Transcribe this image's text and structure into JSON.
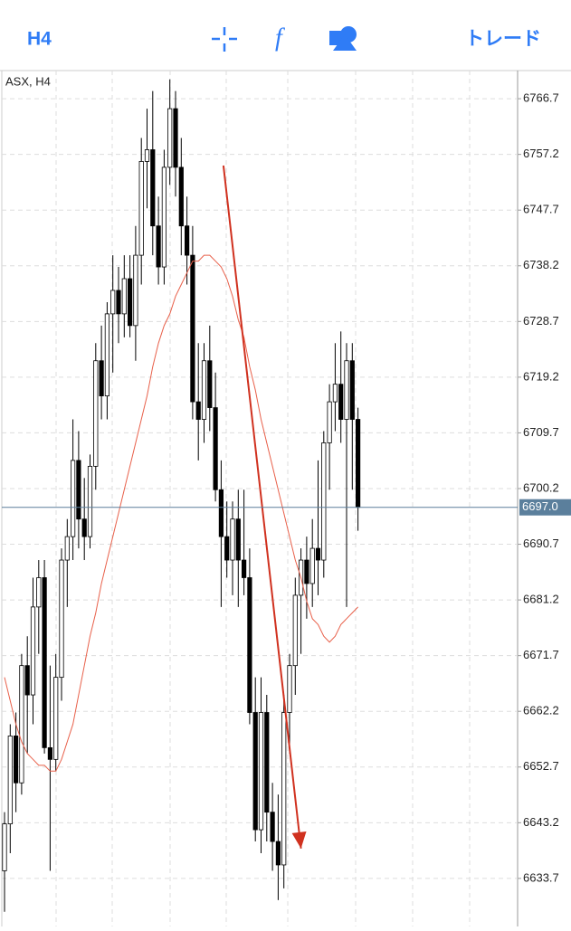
{
  "toolbar": {
    "timeframe": "H4",
    "function_icon": "f",
    "trade": "トレード"
  },
  "chart_data": {
    "type": "candlestick",
    "title": "ASX, H4",
    "open": [
      6635,
      6643,
      6658,
      6650,
      6670,
      6665,
      6680,
      6685,
      6656,
      6654,
      6668,
      6688,
      6692,
      6705,
      6695,
      6692,
      6704,
      6722,
      6716,
      6730,
      6734,
      6730,
      6736,
      6728,
      6740,
      6756,
      6758,
      6745,
      6738,
      6755,
      6765,
      6755,
      6745,
      6740,
      6715,
      6712,
      6722,
      6714,
      6700,
      6692,
      6688,
      6695,
      6688,
      6685,
      6662,
      6642,
      6662,
      6645,
      6640,
      6636,
      6662,
      6670,
      6682,
      6688,
      6684,
      6690,
      6688,
      6708,
      6715,
      6718,
      6712,
      6722,
      6712
    ],
    "high": [
      6645,
      6660,
      6662,
      6672,
      6675,
      6685,
      6688,
      6688,
      6670,
      6672,
      6690,
      6695,
      6712,
      6710,
      6702,
      6706,
      6725,
      6728,
      6732,
      6740,
      6738,
      6740,
      6740,
      6745,
      6760,
      6765,
      6768,
      6750,
      6758,
      6770,
      6768,
      6760,
      6750,
      6745,
      6725,
      6725,
      6728,
      6720,
      6705,
      6698,
      6698,
      6700,
      6700,
      6690,
      6668,
      6668,
      6665,
      6650,
      6648,
      6665,
      6672,
      6685,
      6690,
      6692,
      6695,
      6705,
      6710,
      6718,
      6725,
      6727,
      6725,
      6725,
      6714
    ],
    "low": [
      6628,
      6638,
      6645,
      6648,
      6655,
      6660,
      6672,
      6655,
      6635,
      6652,
      6664,
      6680,
      6688,
      6690,
      6688,
      6690,
      6700,
      6712,
      6712,
      6720,
      6725,
      6726,
      6726,
      6722,
      6735,
      6748,
      6740,
      6735,
      6735,
      6752,
      6750,
      6740,
      6735,
      6712,
      6705,
      6708,
      6710,
      6698,
      6680,
      6685,
      6682,
      6680,
      6682,
      6660,
      6640,
      6638,
      6640,
      6635,
      6630,
      6632,
      6655,
      6665,
      6672,
      6678,
      6680,
      6682,
      6685,
      6700,
      6710,
      6708,
      6680,
      6700,
      6693
    ],
    "close": [
      6643,
      6658,
      6650,
      6670,
      6665,
      6680,
      6685,
      6656,
      6654,
      6668,
      6688,
      6692,
      6705,
      6695,
      6692,
      6704,
      6722,
      6716,
      6730,
      6734,
      6730,
      6736,
      6728,
      6740,
      6756,
      6758,
      6745,
      6738,
      6755,
      6765,
      6755,
      6745,
      6740,
      6715,
      6712,
      6722,
      6714,
      6700,
      6692,
      6688,
      6695,
      6688,
      6685,
      6662,
      6642,
      6662,
      6645,
      6640,
      6636,
      6662,
      6670,
      6682,
      6688,
      6684,
      6690,
      6688,
      6708,
      6715,
      6718,
      6712,
      6722,
      6712,
      6697
    ],
    "series": [
      {
        "name": "MA",
        "color": "#e8604a",
        "values": [
          6668,
          6664,
          6660,
          6657,
          6655,
          6654,
          6653,
          6653,
          6652,
          6652,
          6654,
          6657,
          6660,
          6665,
          6670,
          6675,
          6679,
          6684,
          6688,
          6692,
          6696,
          6700,
          6704,
          6708,
          6712,
          6716,
          6721,
          6725,
          6728,
          6730,
          6733,
          6735,
          6737,
          6739,
          6739,
          6740,
          6740,
          6739,
          6738,
          6736,
          6733,
          6729,
          6726,
          6721,
          6717,
          6712,
          6708,
          6704,
          6700,
          6696,
          6692,
          6688,
          6685,
          6681,
          6678,
          6677,
          6675,
          6674,
          6675,
          6677,
          6678,
          6679,
          6680
        ]
      }
    ],
    "trendline": {
      "x": [
        38.4,
        52
      ],
      "values": [
        6755.3,
        6638.8
      ],
      "color": "#d0311f"
    },
    "current_price": {
      "value": 6697.0,
      "label": "6697.0"
    },
    "up_color": "#ffffff",
    "down_color": "#000000",
    "ylim": [
      6625.5,
      6771.5
    ],
    "yticks": [
      6766.7,
      6757.2,
      6747.7,
      6738.2,
      6728.7,
      6719.2,
      6709.7,
      6700.2,
      6690.7,
      6681.2,
      6671.7,
      6662.2,
      6652.7,
      6643.2,
      6633.7
    ],
    "grid": true
  }
}
